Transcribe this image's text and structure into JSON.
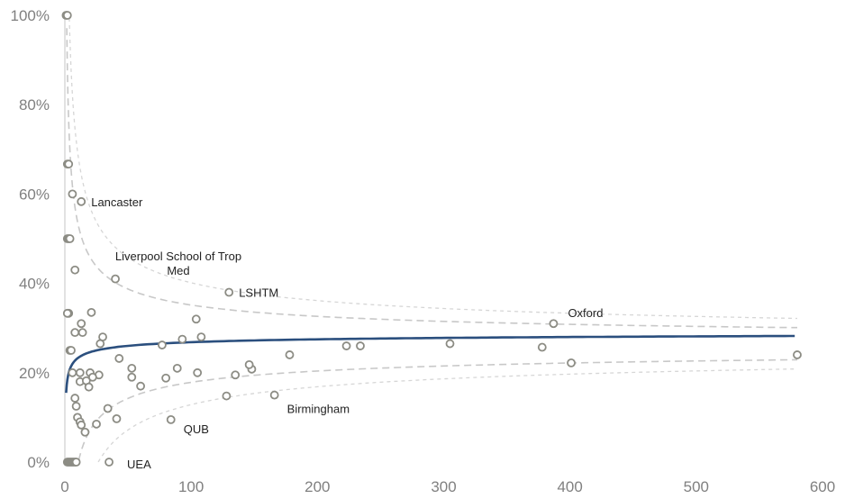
{
  "chart_data": {
    "type": "scatter",
    "title": "",
    "xlabel": "",
    "ylabel": "",
    "xlim": [
      0,
      600
    ],
    "ylim": [
      0,
      1
    ],
    "x_ticks": [
      "0",
      "100",
      "200",
      "300",
      "400",
      "500",
      "600"
    ],
    "y_ticks": [
      "0%",
      "20%",
      "40%",
      "60%",
      "80%",
      "100%"
    ],
    "grid": false,
    "legend": "none",
    "colors": {
      "points": "#8c8c84",
      "mean_line": "#2b4f7e",
      "limits": "#c8c8c8",
      "axis": "#d9d9d9"
    },
    "mean": 0.265,
    "points": [
      {
        "x": 1,
        "y": 1.0
      },
      {
        "x": 2,
        "y": 1.0
      },
      {
        "x": 2,
        "y": 0.667
      },
      {
        "x": 3,
        "y": 0.667
      },
      {
        "x": 2,
        "y": 0.5
      },
      {
        "x": 3,
        "y": 0.5
      },
      {
        "x": 4,
        "y": 0.5
      },
      {
        "x": 3,
        "y": 0.333
      },
      {
        "x": 2,
        "y": 0.333
      },
      {
        "x": 4,
        "y": 0.25
      },
      {
        "x": 5,
        "y": 0.25
      },
      {
        "x": 2,
        "y": 0
      },
      {
        "x": 3,
        "y": 0
      },
      {
        "x": 4,
        "y": 0
      },
      {
        "x": 5,
        "y": 0
      },
      {
        "x": 6,
        "y": 0
      },
      {
        "x": 7,
        "y": 0
      },
      {
        "x": 8,
        "y": 0
      },
      {
        "x": 9,
        "y": 0
      },
      {
        "x": 6,
        "y": 0.6
      },
      {
        "x": 13,
        "y": 0.583,
        "label": "Lancaster"
      },
      {
        "x": 8,
        "y": 0.43
      },
      {
        "x": 40,
        "y": 0.41,
        "label": "Liverpool School of Trop Med"
      },
      {
        "x": 130,
        "y": 0.38,
        "label": "LSHTM"
      },
      {
        "x": 21,
        "y": 0.335
      },
      {
        "x": 13,
        "y": 0.31
      },
      {
        "x": 8,
        "y": 0.29
      },
      {
        "x": 14,
        "y": 0.29
      },
      {
        "x": 104,
        "y": 0.32
      },
      {
        "x": 387,
        "y": 0.31,
        "label": "Oxford"
      },
      {
        "x": 30,
        "y": 0.28
      },
      {
        "x": 93,
        "y": 0.275
      },
      {
        "x": 108,
        "y": 0.28
      },
      {
        "x": 28,
        "y": 0.265
      },
      {
        "x": 77,
        "y": 0.262
      },
      {
        "x": 223,
        "y": 0.26
      },
      {
        "x": 234,
        "y": 0.26
      },
      {
        "x": 305,
        "y": 0.265
      },
      {
        "x": 378,
        "y": 0.257
      },
      {
        "x": 178,
        "y": 0.24
      },
      {
        "x": 580,
        "y": 0.24
      },
      {
        "x": 43,
        "y": 0.232
      },
      {
        "x": 401,
        "y": 0.222
      },
      {
        "x": 53,
        "y": 0.21
      },
      {
        "x": 89,
        "y": 0.21
      },
      {
        "x": 148,
        "y": 0.208
      },
      {
        "x": 146,
        "y": 0.218
      },
      {
        "x": 105,
        "y": 0.2
      },
      {
        "x": 135,
        "y": 0.195
      },
      {
        "x": 6,
        "y": 0.2
      },
      {
        "x": 12,
        "y": 0.2
      },
      {
        "x": 20,
        "y": 0.2
      },
      {
        "x": 27,
        "y": 0.195
      },
      {
        "x": 22,
        "y": 0.19
      },
      {
        "x": 53,
        "y": 0.19
      },
      {
        "x": 80,
        "y": 0.188
      },
      {
        "x": 12,
        "y": 0.18
      },
      {
        "x": 17,
        "y": 0.182
      },
      {
        "x": 19,
        "y": 0.168
      },
      {
        "x": 60,
        "y": 0.17
      },
      {
        "x": 128,
        "y": 0.148
      },
      {
        "x": 166,
        "y": 0.15,
        "label": "Birmingham"
      },
      {
        "x": 8,
        "y": 0.143
      },
      {
        "x": 9,
        "y": 0.125
      },
      {
        "x": 34,
        "y": 0.12
      },
      {
        "x": 10,
        "y": 0.1
      },
      {
        "x": 41,
        "y": 0.097
      },
      {
        "x": 84,
        "y": 0.095,
        "label": "QUB"
      },
      {
        "x": 12,
        "y": 0.09
      },
      {
        "x": 13,
        "y": 0.083
      },
      {
        "x": 25,
        "y": 0.085
      },
      {
        "x": 16,
        "y": 0.067
      },
      {
        "x": 35,
        "y": 0.0,
        "label": "UEA"
      }
    ]
  }
}
